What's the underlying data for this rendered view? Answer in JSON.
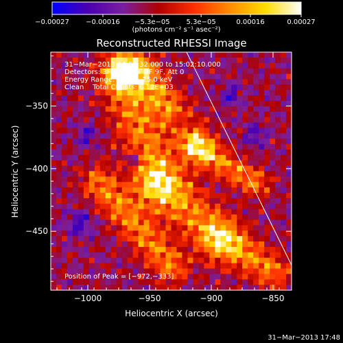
{
  "chart_data": {
    "type": "heatmap",
    "title": "Reconstructed RHESSI Image",
    "xlabel": "Heliocentric X (arcsec)",
    "ylabel": "Heliocentric Y (arcsec)",
    "xlim": [
      -1030,
      -835
    ],
    "ylim": [
      -497,
      -307
    ],
    "x_ticks": [
      {
        "value": -1000,
        "label": "−1000"
      },
      {
        "value": -950,
        "label": "−950"
      },
      {
        "value": -900,
        "label": "−900"
      },
      {
        "value": -850,
        "label": "−850"
      }
    ],
    "y_ticks": [
      {
        "value": -350,
        "label": "−350"
      },
      {
        "value": -400,
        "label": "−400"
      },
      {
        "value": -450,
        "label": "−450"
      }
    ],
    "colorbar": {
      "range": [
        -0.00027,
        0.00027
      ],
      "ticks": [
        {
          "value": -0.00027,
          "label": "−0.00027"
        },
        {
          "value": -0.00016,
          "label": "−0.00016"
        },
        {
          "value": -5.3e-05,
          "label": "−5.3e−05"
        },
        {
          "value": 5.3e-05,
          "label": "5.3e−05"
        },
        {
          "value": 0.00016,
          "label": "0.00016"
        },
        {
          "value": 0.00027,
          "label": "0.00027"
        }
      ],
      "units_label": "(photons cm⁻² s⁻¹ asec⁻²)",
      "stops": [
        "#0000ff",
        "#4a00b0",
        "#7a1fa0",
        "#b00000",
        "#ff3000",
        "#ff8c00",
        "#ffdc00",
        "#ffffff"
      ]
    },
    "annotations": {
      "line1": "31−Mar−2013 14:56:32.000 to 15:02:10.000",
      "line2": "Detectors: 3F 5F 6F 7F 8F 9F, Att 0",
      "line3": "Energy Range: 12.0 − 25.0 keV",
      "line4": "Clean    Total Counts: 6.12E+03",
      "peak": "Position of Peak = [−972,−333]"
    },
    "limb_line": {
      "x1": -920,
      "y1": -307,
      "x2": -835,
      "y2": -477
    }
  },
  "footer": {
    "timestamp": "31−Mar−2013 17:48"
  }
}
